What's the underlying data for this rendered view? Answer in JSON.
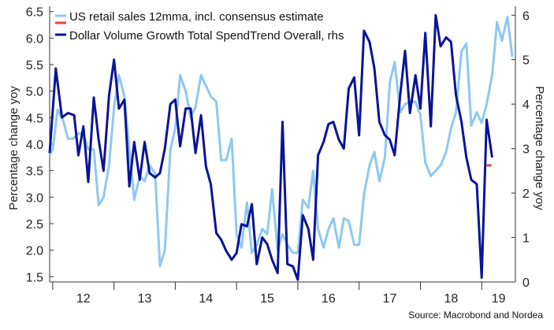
{
  "chart_data": {
    "type": "line",
    "source": "Source: Macrobond and Nordea",
    "y_left_label": "Percentage change yoy",
    "y_right_label": "Percentage change yoy",
    "y_left_range": [
      1.4,
      6.6
    ],
    "y_right_range": [
      0,
      6.2
    ],
    "y_left_ticks": [
      "6.5",
      "6.0",
      "5.5",
      "5.0",
      "4.5",
      "4.0",
      "3.5",
      "3.0",
      "2.5",
      "2.0",
      "1.5"
    ],
    "y_right_ticks": [
      "6",
      "5",
      "4",
      "3",
      "2",
      "1",
      "0"
    ],
    "x_range": [
      2011.95,
      2019.55
    ],
    "x_tick_labels": [
      "12",
      "13",
      "14",
      "15",
      "16",
      "17",
      "18",
      "19"
    ],
    "legend_placement": "top-left",
    "colors": {
      "retail": "#8ec8f2",
      "spend": "#0a1496",
      "estimate": "#e8453c"
    },
    "series": [
      {
        "name": "US retail sales 12mma, incl. consensus estimate",
        "axis": "left",
        "points": [
          [
            2011.95,
            3.8
          ],
          [
            2012.0,
            3.9
          ],
          [
            2012.08,
            4.65
          ],
          [
            2012.17,
            4.45
          ],
          [
            2012.25,
            4.1
          ],
          [
            2012.33,
            4.1
          ],
          [
            2012.42,
            4.2
          ],
          [
            2012.5,
            4.2
          ],
          [
            2012.58,
            3.9
          ],
          [
            2012.67,
            3.9
          ],
          [
            2012.75,
            2.85
          ],
          [
            2012.83,
            3.0
          ],
          [
            2012.92,
            3.6
          ],
          [
            2013.0,
            4.7
          ],
          [
            2013.08,
            5.3
          ],
          [
            2013.17,
            4.9
          ],
          [
            2013.25,
            3.9
          ],
          [
            2013.33,
            2.95
          ],
          [
            2013.42,
            3.4
          ],
          [
            2013.5,
            3.3
          ],
          [
            2013.58,
            3.6
          ],
          [
            2013.67,
            3.45
          ],
          [
            2013.75,
            1.7
          ],
          [
            2013.83,
            2.0
          ],
          [
            2013.92,
            3.9
          ],
          [
            2014.0,
            4.3
          ],
          [
            2014.08,
            5.3
          ],
          [
            2014.17,
            5.0
          ],
          [
            2014.25,
            4.5
          ],
          [
            2014.33,
            4.7
          ],
          [
            2014.42,
            5.3
          ],
          [
            2014.5,
            5.1
          ],
          [
            2014.58,
            4.9
          ],
          [
            2014.67,
            4.8
          ],
          [
            2014.75,
            3.7
          ],
          [
            2014.83,
            3.7
          ],
          [
            2014.92,
            4.1
          ],
          [
            2015.0,
            2.3
          ],
          [
            2015.08,
            2.05
          ],
          [
            2015.17,
            2.9
          ],
          [
            2015.25,
            1.95
          ],
          [
            2015.33,
            2.1
          ],
          [
            2015.42,
            2.4
          ],
          [
            2015.5,
            2.3
          ],
          [
            2015.58,
            3.15
          ],
          [
            2015.67,
            2.0
          ],
          [
            2015.75,
            2.3
          ],
          [
            2015.83,
            2.1
          ],
          [
            2015.92,
            1.95
          ],
          [
            2016.0,
            1.95
          ],
          [
            2016.08,
            2.95
          ],
          [
            2016.17,
            2.8
          ],
          [
            2016.25,
            3.5
          ],
          [
            2016.33,
            2.4
          ],
          [
            2016.42,
            2.05
          ],
          [
            2016.5,
            2.4
          ],
          [
            2016.58,
            2.6
          ],
          [
            2016.67,
            2.05
          ],
          [
            2016.75,
            2.6
          ],
          [
            2016.83,
            2.55
          ],
          [
            2016.92,
            2.1
          ],
          [
            2017.0,
            2.1
          ],
          [
            2017.08,
            3.05
          ],
          [
            2017.17,
            3.6
          ],
          [
            2017.25,
            3.85
          ],
          [
            2017.33,
            3.3
          ],
          [
            2017.42,
            3.75
          ],
          [
            2017.5,
            5.15
          ],
          [
            2017.58,
            5.55
          ],
          [
            2017.67,
            4.6
          ],
          [
            2017.75,
            4.75
          ],
          [
            2017.83,
            4.8
          ],
          [
            2017.92,
            4.8
          ],
          [
            2018.0,
            4.55
          ],
          [
            2018.08,
            3.65
          ],
          [
            2018.17,
            3.4
          ],
          [
            2018.25,
            3.5
          ],
          [
            2018.33,
            3.6
          ],
          [
            2018.42,
            3.85
          ],
          [
            2018.5,
            4.3
          ],
          [
            2018.58,
            4.6
          ],
          [
            2018.67,
            5.75
          ],
          [
            2018.75,
            5.9
          ],
          [
            2018.83,
            4.35
          ],
          [
            2018.92,
            4.6
          ],
          [
            2019.0,
            4.4
          ],
          [
            2019.08,
            4.75
          ],
          [
            2019.17,
            5.3
          ],
          [
            2019.25,
            6.3
          ],
          [
            2019.33,
            5.95
          ],
          [
            2019.42,
            6.4
          ],
          [
            2019.5,
            5.65
          ]
        ]
      },
      {
        "name": "Dollar Volume Growth Total SpendTrend Overall, rhs",
        "axis": "right",
        "points": [
          [
            2011.95,
            2.9
          ],
          [
            2012.05,
            4.8
          ],
          [
            2012.15,
            3.7
          ],
          [
            2012.25,
            3.8
          ],
          [
            2012.35,
            3.75
          ],
          [
            2012.42,
            2.85
          ],
          [
            2012.5,
            3.5
          ],
          [
            2012.58,
            2.25
          ],
          [
            2012.67,
            4.15
          ],
          [
            2012.75,
            3.2
          ],
          [
            2012.83,
            2.5
          ],
          [
            2012.92,
            4.2
          ],
          [
            2013.0,
            5.0
          ],
          [
            2013.08,
            3.9
          ],
          [
            2013.17,
            4.1
          ],
          [
            2013.25,
            2.15
          ],
          [
            2013.33,
            3.15
          ],
          [
            2013.42,
            2.3
          ],
          [
            2013.5,
            3.15
          ],
          [
            2013.58,
            2.45
          ],
          [
            2013.67,
            2.35
          ],
          [
            2013.75,
            2.45
          ],
          [
            2013.83,
            3.0
          ],
          [
            2013.92,
            4.0
          ],
          [
            2014.0,
            4.1
          ],
          [
            2014.08,
            3.05
          ],
          [
            2014.17,
            3.9
          ],
          [
            2014.25,
            3.9
          ],
          [
            2014.33,
            2.9
          ],
          [
            2014.42,
            3.75
          ],
          [
            2014.5,
            2.6
          ],
          [
            2014.58,
            2.2
          ],
          [
            2014.67,
            1.1
          ],
          [
            2014.75,
            0.95
          ],
          [
            2014.83,
            0.7
          ],
          [
            2014.92,
            0.5
          ],
          [
            2015.0,
            0.65
          ],
          [
            2015.08,
            1.3
          ],
          [
            2015.17,
            1.25
          ],
          [
            2015.25,
            1.75
          ],
          [
            2015.33,
            0.4
          ],
          [
            2015.42,
            1.0
          ],
          [
            2015.5,
            0.85
          ],
          [
            2015.58,
            0.5
          ],
          [
            2015.67,
            0.2
          ],
          [
            2015.75,
            3.6
          ],
          [
            2015.83,
            0.4
          ],
          [
            2015.92,
            0.35
          ],
          [
            2016.0,
            0.05
          ],
          [
            2016.08,
            1.5
          ],
          [
            2016.17,
            1.2
          ],
          [
            2016.25,
            0.5
          ],
          [
            2016.33,
            2.85
          ],
          [
            2016.42,
            3.15
          ],
          [
            2016.5,
            3.55
          ],
          [
            2016.58,
            3.6
          ],
          [
            2016.67,
            3.2
          ],
          [
            2016.75,
            3.0
          ],
          [
            2016.83,
            4.35
          ],
          [
            2016.92,
            4.6
          ],
          [
            2017.0,
            3.3
          ],
          [
            2017.08,
            5.65
          ],
          [
            2017.17,
            5.4
          ],
          [
            2017.25,
            4.8
          ],
          [
            2017.33,
            3.6
          ],
          [
            2017.42,
            3.3
          ],
          [
            2017.5,
            3.2
          ],
          [
            2017.58,
            2.85
          ],
          [
            2017.67,
            4.2
          ],
          [
            2017.75,
            5.2
          ],
          [
            2017.83,
            3.8
          ],
          [
            2017.92,
            4.65
          ],
          [
            2018.0,
            3.9
          ],
          [
            2018.08,
            5.6
          ],
          [
            2018.17,
            3.5
          ],
          [
            2018.25,
            6.0
          ],
          [
            2018.33,
            5.3
          ],
          [
            2018.42,
            5.5
          ],
          [
            2018.5,
            5.4
          ],
          [
            2018.58,
            4.2
          ],
          [
            2018.67,
            3.6
          ],
          [
            2018.75,
            2.8
          ],
          [
            2018.83,
            2.3
          ],
          [
            2018.92,
            2.2
          ],
          [
            2019.0,
            0.1
          ],
          [
            2019.08,
            3.65
          ],
          [
            2019.17,
            2.8
          ]
        ]
      }
    ],
    "estimate_marker": {
      "axis": "left",
      "x": [
        2019.08,
        2019.16
      ],
      "y": 3.6
    }
  }
}
